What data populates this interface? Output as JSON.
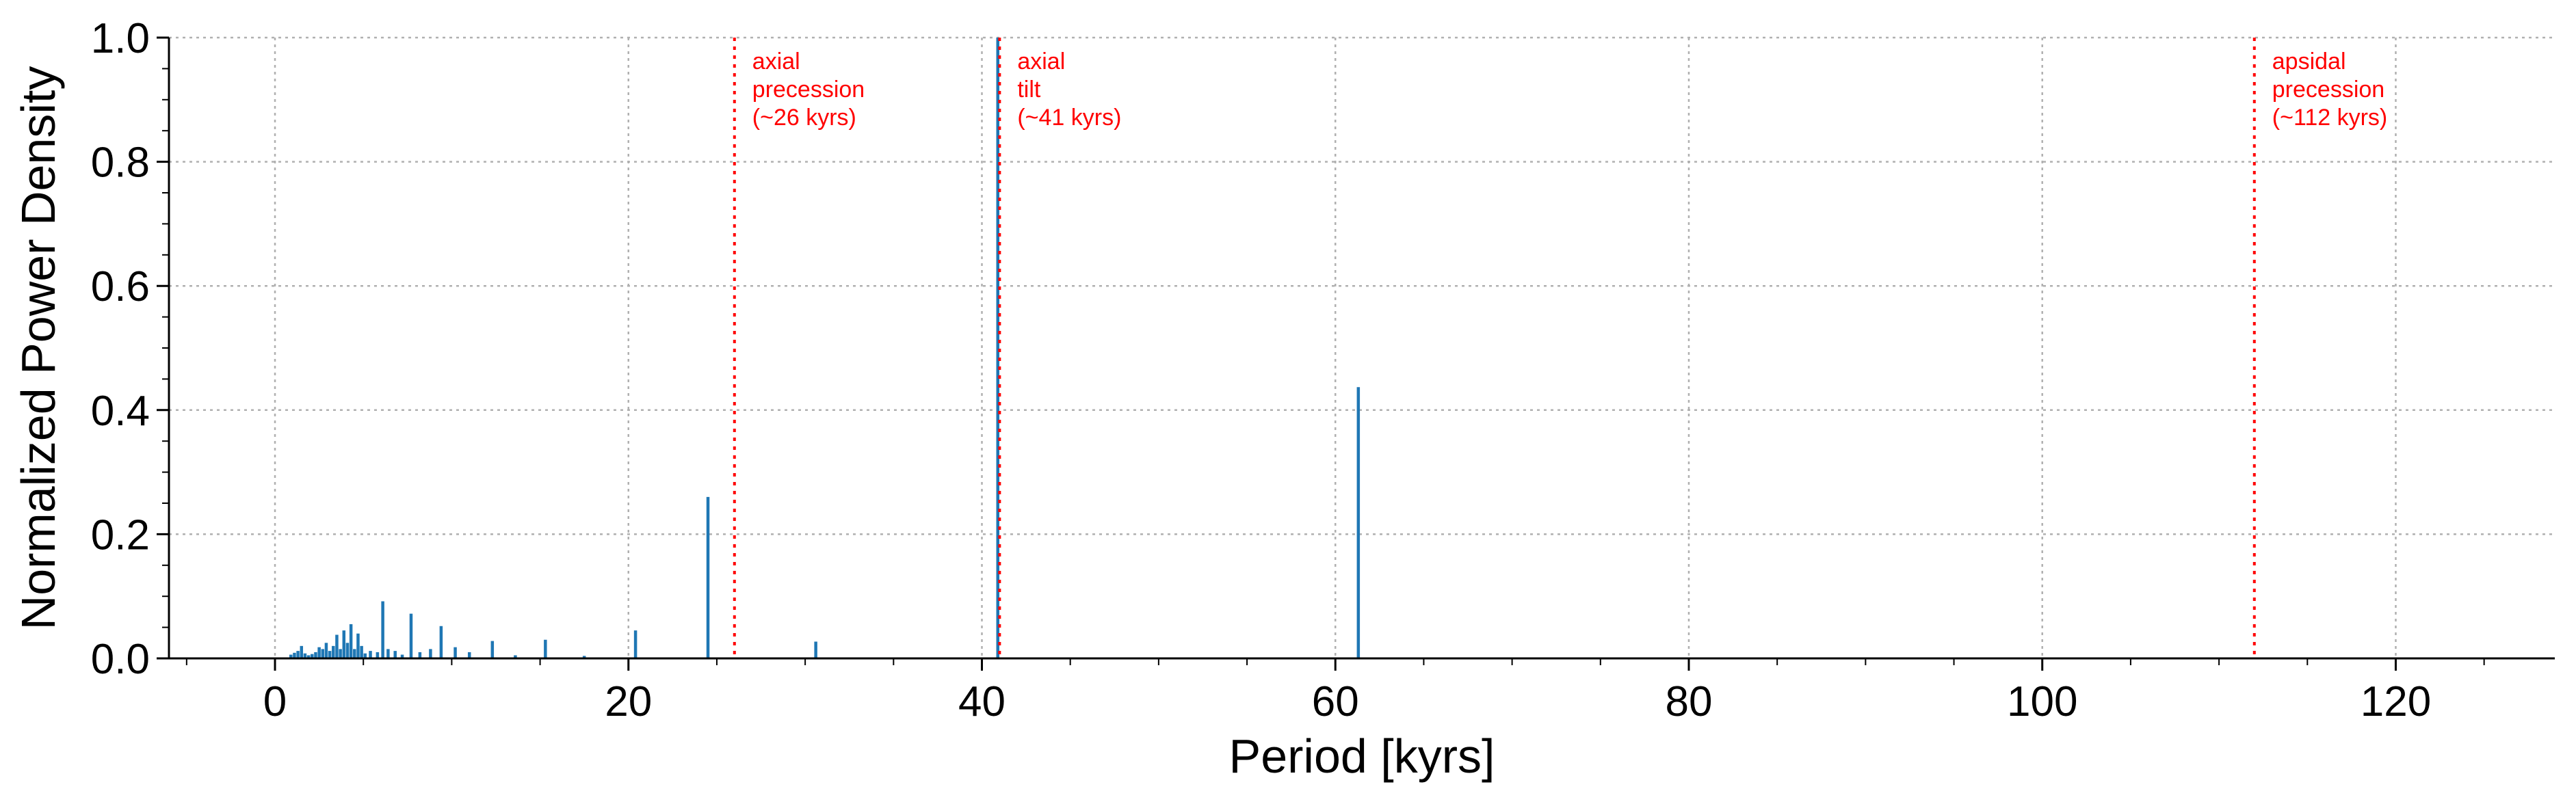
{
  "chart_data": {
    "type": "bar",
    "xlabel": "Period [kyrs]",
    "ylabel": "Normalized Power Density",
    "xlim": [
      -6,
      129
    ],
    "ylim": [
      0,
      1.0
    ],
    "xticks": [
      "0",
      "20",
      "40",
      "60",
      "80",
      "100",
      "120"
    ],
    "yticks": [
      "0.0",
      "0.2",
      "0.4",
      "0.6",
      "0.8",
      "1.0"
    ],
    "grid": true,
    "bar_color": "#1f77b4",
    "annotation_color": "#ff0000",
    "series": [
      {
        "x": [
          0.9,
          1.1,
          1.3,
          1.5,
          1.7,
          1.9,
          2.1,
          2.3,
          2.5,
          2.7,
          2.9,
          3.1,
          3.3,
          3.5,
          3.7,
          3.9,
          4.1,
          4.3,
          4.5,
          4.7,
          4.9,
          5.1,
          5.4,
          5.8,
          6.1,
          6.4,
          6.8,
          7.2,
          7.7,
          8.2,
          8.8,
          9.4,
          10.2,
          11.0,
          12.3,
          13.6,
          15.3,
          17.5,
          20.4,
          24.5,
          30.6,
          40.9,
          61.3
        ],
        "values": [
          0.006,
          0.009,
          0.012,
          0.02,
          0.008,
          0.005,
          0.007,
          0.01,
          0.018,
          0.015,
          0.025,
          0.012,
          0.02,
          0.038,
          0.015,
          0.045,
          0.025,
          0.055,
          0.015,
          0.04,
          0.02,
          0.008,
          0.012,
          0.01,
          0.092,
          0.015,
          0.012,
          0.006,
          0.072,
          0.01,
          0.015,
          0.052,
          0.018,
          0.01,
          0.028,
          0.005,
          0.03,
          0.004,
          0.045,
          0.26,
          0.027,
          1.0,
          0.437
        ]
      }
    ],
    "reference_lines": [
      {
        "x": 26,
        "lines": [
          "axial",
          "precession",
          "(~26 kyrs)"
        ]
      },
      {
        "x": 41,
        "lines": [
          "axial",
          "tilt",
          "(~41 kyrs)"
        ]
      },
      {
        "x": 112,
        "lines": [
          "apsidal",
          "precession",
          "(~112 kyrs)"
        ]
      }
    ]
  }
}
